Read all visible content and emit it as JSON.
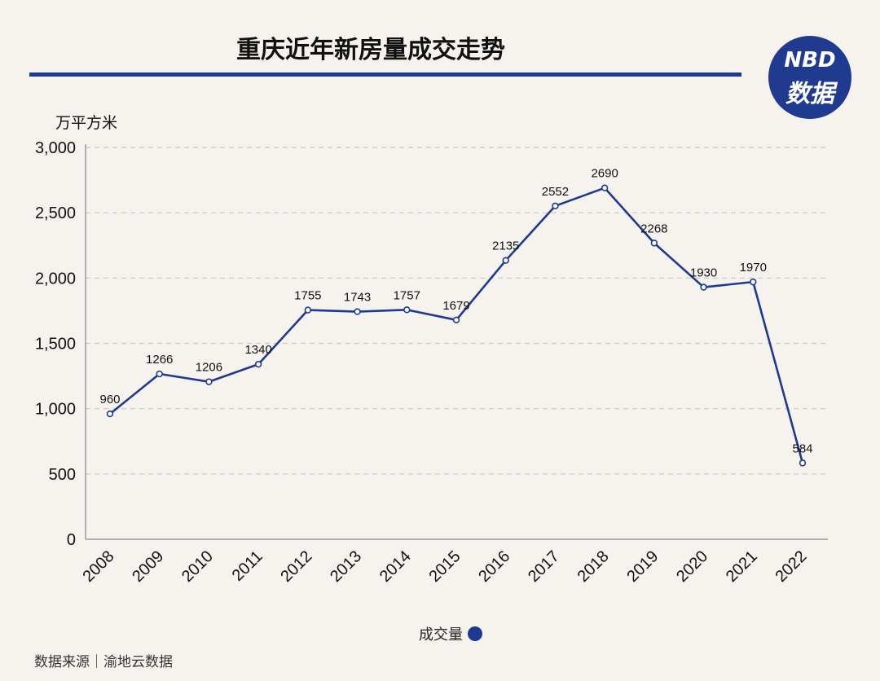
{
  "header": {
    "title": "重庆近年新房量成交走势",
    "logo_top": "NBD",
    "logo_bottom": "数据"
  },
  "footer": {
    "source": "数据来源｜渝地云数据"
  },
  "colors": {
    "accent": "#1d3a93",
    "background": "#f6f3ee",
    "grid": "#c8c8c8"
  },
  "chart_data": {
    "type": "line",
    "title": "重庆近年新房量成交走势",
    "ylabel": "万平方米",
    "xlabel": "",
    "ylim": [
      0,
      3000
    ],
    "yticks": [
      0,
      500,
      1000,
      1500,
      2000,
      2500,
      3000
    ],
    "ytick_labels": [
      "0",
      "500",
      "1,000",
      "1,500",
      "2,000",
      "2,500",
      "3,000"
    ],
    "categories": [
      "2008",
      "2009",
      "2010",
      "2011",
      "2012",
      "2013",
      "2014",
      "2015",
      "2016",
      "2017",
      "2018",
      "2019",
      "2020",
      "2021",
      "2022"
    ],
    "series": [
      {
        "name": "成交量",
        "values": [
          960,
          1266,
          1206,
          1340,
          1755,
          1743,
          1757,
          1679,
          2135,
          2552,
          2690,
          2268,
          1930,
          1970,
          584
        ]
      }
    ],
    "grid": true,
    "legend": "bottom-center"
  }
}
